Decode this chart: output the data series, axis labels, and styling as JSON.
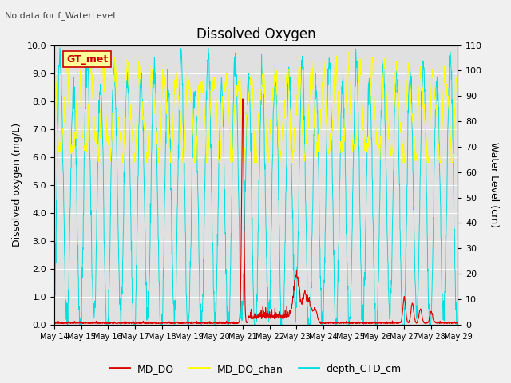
{
  "title": "Dissolved Oxygen",
  "top_left_text": "No data for f_WaterLevel",
  "annotation_text": "GT_met",
  "ylabel_left": "Dissolved oxygen (mg/L)",
  "ylabel_right": "Water Level (cm)",
  "ylim_left": [
    0.0,
    10.0
  ],
  "ylim_right": [
    0,
    110
  ],
  "yticks_left": [
    0.0,
    1.0,
    2.0,
    3.0,
    4.0,
    5.0,
    6.0,
    7.0,
    8.0,
    9.0,
    10.0
  ],
  "yticks_right": [
    0,
    10,
    20,
    30,
    40,
    50,
    60,
    70,
    80,
    90,
    100,
    110
  ],
  "fig_bg_color": "#f0f0f0",
  "plot_bg_color": "#e0e0e0",
  "grid_color": "#ffffff",
  "line_colors": {
    "MD_DO": "#dd0000",
    "MD_DO_chan": "#ffff00",
    "depth_CTD_cm": "#00e0e0"
  },
  "legend_labels": [
    "MD_DO",
    "MD_DO_chan",
    "depth_CTD_cm"
  ],
  "n_points": 1500
}
